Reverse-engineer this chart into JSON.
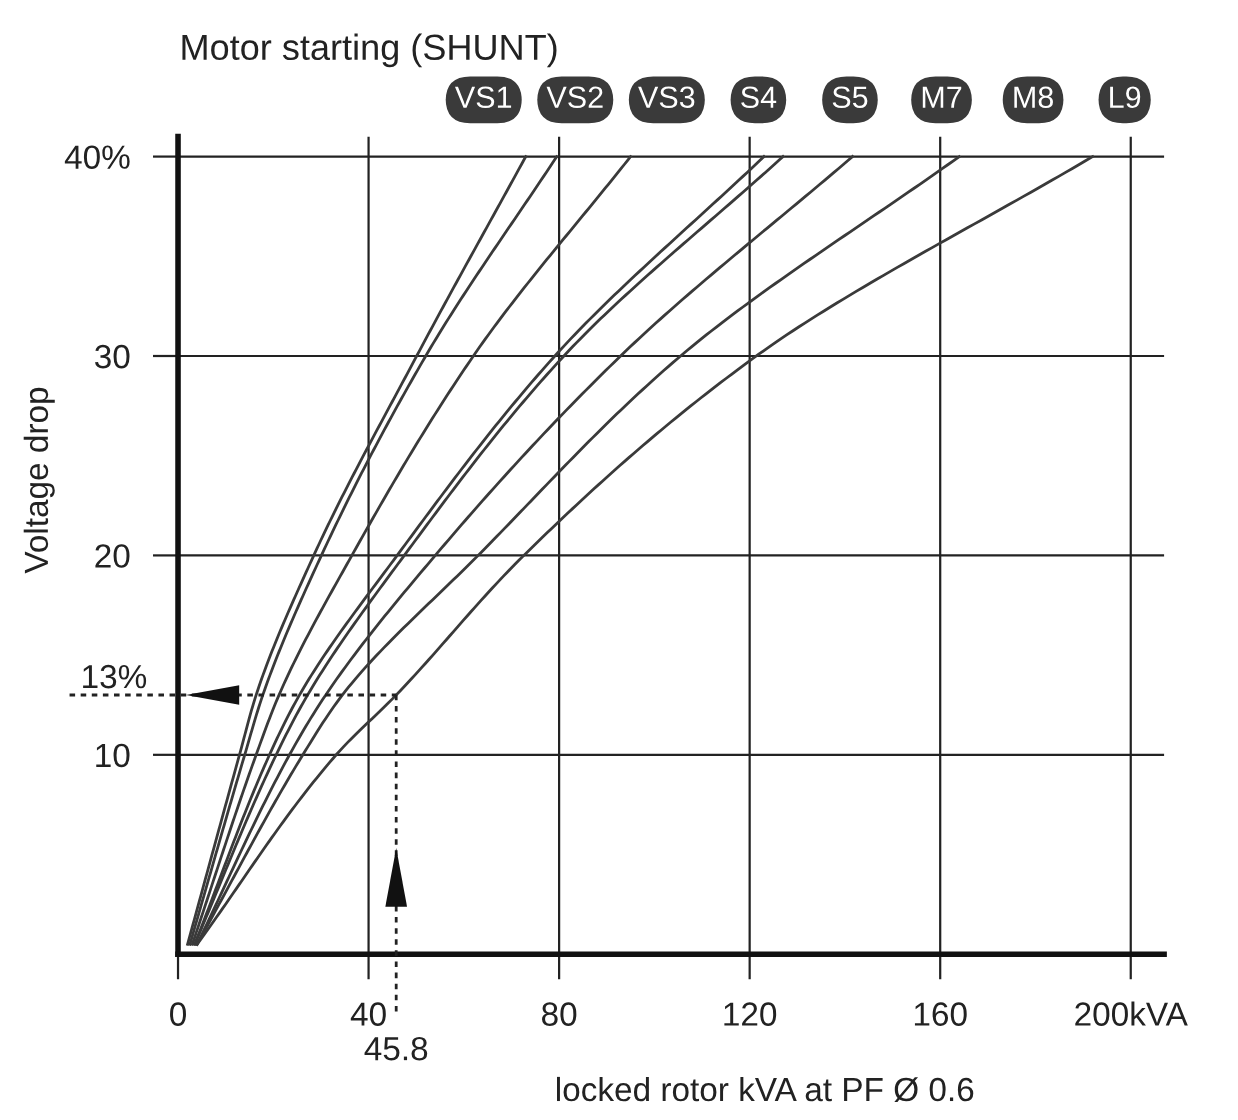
{
  "chart_data": {
    "type": "line",
    "title": "Motor starting (SHUNT)",
    "xlabel": "locked rotor kVA at PF Ø 0.6",
    "ylabel": "Voltage drop",
    "xlim": [
      0,
      207
    ],
    "ylim": [
      0,
      41
    ],
    "xticks": [
      0,
      40,
      80,
      120,
      160,
      {
        "value": 200,
        "label": "200kVA"
      }
    ],
    "yticks": [
      10,
      20,
      30,
      {
        "value": 40,
        "label": "40%"
      }
    ],
    "grid": true,
    "legend": "top",
    "ref_lines": [
      {
        "axis": "y",
        "value": 13,
        "label": "13%",
        "line_style": "dotted",
        "color": "#222222"
      },
      {
        "axis": "x",
        "value": 45.8,
        "label": "45.8",
        "line_style": "dotted",
        "color": "#222222"
      }
    ],
    "series": [
      {
        "name": "VS1",
        "color": "#3a3a3a",
        "x": [
          2,
          12.9,
          16.4,
          28.5,
          50.1,
          73
        ],
        "values": [
          0.5,
          10,
          13,
          20,
          30,
          40
        ]
      },
      {
        "name": "VS2",
        "color": "#3a3a3a",
        "x": [
          2.5,
          14,
          17.8,
          30.1,
          52,
          79.5
        ],
        "values": [
          0.5,
          10,
          13,
          20,
          30,
          40
        ]
      },
      {
        "name": "VS3",
        "color": "#3a3a3a",
        "x": [
          3,
          16.4,
          21.2,
          36.5,
          62,
          95
        ],
        "values": [
          0.5,
          10,
          13,
          20,
          30,
          40
        ]
      },
      {
        "name": "S4",
        "color": "#3a3a3a",
        "x": [
          3.5,
          19.2,
          25.5,
          46,
          79.1,
          123
        ],
        "values": [
          0.5,
          10,
          13,
          20,
          30,
          40
        ]
      },
      {
        "name": "S5",
        "color": "#3a3a3a",
        "x": [
          3.5,
          20.6,
          27.2,
          47.5,
          81,
          127
        ],
        "values": [
          0.5,
          10,
          13,
          20,
          30,
          40
        ]
      },
      {
        "name": "M7",
        "color": "#3a3a3a",
        "x": [
          4,
          23.4,
          31,
          54,
          92.9,
          141.6
        ],
        "values": [
          0.5,
          10,
          13,
          20,
          30,
          40
        ]
      },
      {
        "name": "M8",
        "color": "#3a3a3a",
        "x": [
          4,
          26.2,
          34.5,
          63,
          105.5,
          164
        ],
        "values": [
          0.5,
          10,
          13,
          20,
          30,
          40
        ]
      },
      {
        "name": "L9",
        "color": "#3a3a3a",
        "x": [
          4,
          33.2,
          45.8,
          72.6,
          121.4,
          192
        ],
        "values": [
          0.5,
          10,
          13,
          20,
          30,
          40
        ]
      }
    ]
  }
}
